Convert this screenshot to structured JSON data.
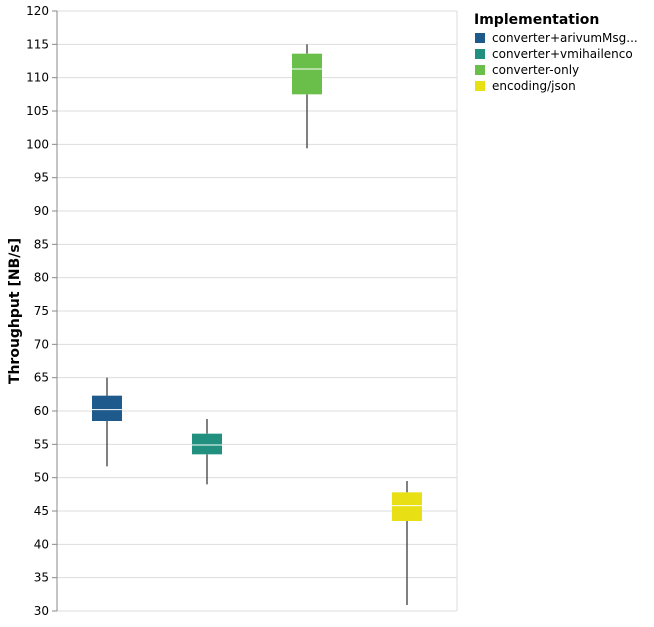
{
  "chart_data": {
    "type": "boxplot",
    "title": "",
    "ylabel": "Throughput [NB/s]",
    "xlabel": "",
    "ylim": [
      30,
      120
    ],
    "y_ticks": [
      30,
      35,
      40,
      45,
      50,
      55,
      60,
      65,
      70,
      75,
      80,
      85,
      90,
      95,
      100,
      105,
      110,
      115,
      120
    ],
    "grid": true,
    "legend": {
      "title": "Implementation",
      "position": "top-right"
    },
    "series": [
      {
        "name": "converter+arivumMsg...",
        "color": "#1f5a8c",
        "min": 51.7,
        "q1": 58.5,
        "median": 60.2,
        "q3": 62.3,
        "max": 65.0
      },
      {
        "name": "converter+vmihailenco",
        "color": "#21907f",
        "min": 49.0,
        "q1": 53.5,
        "median": 54.9,
        "q3": 56.6,
        "max": 58.8
      },
      {
        "name": "converter-only",
        "color": "#6abf4b",
        "min": 99.4,
        "q1": 107.5,
        "median": 111.3,
        "q3": 113.6,
        "max": 115.0
      },
      {
        "name": "encoding/json",
        "color": "#e8e014",
        "min": 30.9,
        "q1": 43.5,
        "median": 45.8,
        "q3": 47.8,
        "max": 49.5
      }
    ]
  }
}
